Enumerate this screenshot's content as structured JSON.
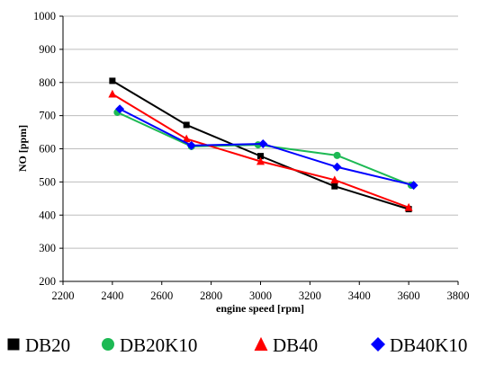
{
  "chart_data": {
    "type": "line",
    "xlabel": "engine speed [rpm]",
    "ylabel": "NO [ppm]",
    "xlim": [
      2200,
      3800
    ],
    "ylim": [
      200,
      1000
    ],
    "xticks": [
      2200,
      2400,
      2600,
      2800,
      3000,
      3200,
      3400,
      3600,
      3800
    ],
    "yticks": [
      200,
      300,
      400,
      500,
      600,
      700,
      800,
      900,
      1000
    ],
    "grid": "horizontal",
    "legend_position": "bottom",
    "series": [
      {
        "name": "DB20",
        "color": "#000000",
        "marker": "square",
        "x": [
          2400,
          2700,
          3000,
          3300,
          3600
        ],
        "y": [
          805,
          672,
          578,
          487,
          418
        ]
      },
      {
        "name": "DB20K10",
        "color": "#1db954",
        "marker": "circle",
        "x": [
          2420,
          2720,
          2990,
          3310,
          3610
        ],
        "y": [
          710,
          607,
          612,
          580,
          490
        ]
      },
      {
        "name": "DB40",
        "color": "#ff0000",
        "marker": "triangle",
        "x": [
          2400,
          2700,
          3000,
          3300,
          3600
        ],
        "y": [
          765,
          630,
          562,
          506,
          423
        ]
      },
      {
        "name": "DB40K10",
        "color": "#0000ff",
        "marker": "diamond",
        "x": [
          2430,
          2720,
          3010,
          3310,
          3620
        ],
        "y": [
          720,
          610,
          615,
          545,
          490
        ]
      }
    ]
  }
}
